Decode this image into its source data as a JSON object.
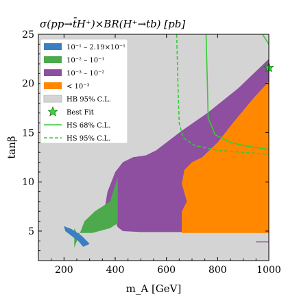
{
  "chart_data": {
    "type": "area",
    "title": "σ(pp→t̄H⁺)×BR(H⁺→tb) [pb]",
    "xlabel": "m_A [GeV]",
    "ylabel": "tanβ",
    "xlim": [
      100,
      1000
    ],
    "ylim": [
      2,
      25
    ],
    "xticks": [
      "200",
      "400",
      "600",
      "800",
      "1000"
    ],
    "xtick_values": [
      200,
      400,
      600,
      800,
      1000
    ],
    "yticks": [
      "5",
      "10",
      "15",
      "20",
      "25"
    ],
    "ytick_values": [
      5,
      10,
      15,
      20,
      25
    ],
    "grid": false,
    "legend_position": "top-left",
    "colors": {
      "background": "#d4d4d4",
      "band1": "#3a7fc1",
      "band2": "#4caa4c",
      "band3": "#8e4fa0",
      "band4": "#ff8800",
      "hb": "#d4d4d4",
      "bestfit": "#33dd33",
      "hs": "#33cc33"
    },
    "legend": [
      {
        "label": "10⁻¹ – 2.19×10⁻¹",
        "color": "#3a7fc1",
        "kind": "patch"
      },
      {
        "label": "10⁻² – 10⁻¹",
        "color": "#4caa4c",
        "kind": "patch"
      },
      {
        "label": "10⁻³ – 10⁻²",
        "color": "#8e4fa0",
        "kind": "patch"
      },
      {
        "label": "< 10⁻³",
        "color": "#ff8800",
        "kind": "patch"
      },
      {
        "label": "HB 95% C.L.",
        "color": "#d4d4d4",
        "kind": "patch"
      },
      {
        "label": "Best Fit",
        "color": "#33dd33",
        "kind": "star"
      },
      {
        "label": "HS 68% C.L.",
        "color": "#33cc33",
        "kind": "solid"
      },
      {
        "label": "HS 95% C.L.",
        "color": "#33cc33",
        "kind": "dashed"
      }
    ],
    "best_fit": {
      "x": 1000,
      "y": 21.6
    },
    "regions": [
      {
        "name": "10⁻³ – 10⁻²",
        "color": "#8e4fa0",
        "points": [
          [
            350,
            6.0
          ],
          [
            370,
            9.0
          ],
          [
            400,
            11.0
          ],
          [
            430,
            12.0
          ],
          [
            470,
            12.5
          ],
          [
            520,
            12.7
          ],
          [
            560,
            13.2
          ],
          [
            600,
            14.0
          ],
          [
            660,
            15.2
          ],
          [
            760,
            17.0
          ],
          [
            880,
            19.5
          ],
          [
            1000,
            22.5
          ],
          [
            1000,
            4.8
          ],
          [
            700,
            4.9
          ],
          [
            500,
            4.9
          ],
          [
            430,
            5.0
          ],
          [
            410,
            5.4
          ],
          [
            400,
            6.0
          ]
        ]
      },
      {
        "name": "10⁻² – 10⁻¹",
        "color": "#4caa4c",
        "points": [
          [
            240,
            3.3
          ],
          [
            280,
            6.0
          ],
          [
            320,
            7.0
          ],
          [
            380,
            8.0
          ],
          [
            410,
            10.5
          ],
          [
            410,
            5.8
          ],
          [
            380,
            5.3
          ],
          [
            310,
            4.8
          ],
          [
            250,
            4.8
          ],
          [
            240,
            5.3
          ]
        ]
      },
      {
        "name": "10⁻¹ – 2.19×10⁻¹",
        "color": "#3a7fc1",
        "points": [
          [
            200,
            5.5
          ],
          [
            230,
            5.2
          ],
          [
            270,
            4.5
          ],
          [
            300,
            3.7
          ],
          [
            275,
            3.4
          ],
          [
            255,
            4.0
          ],
          [
            225,
            4.6
          ],
          [
            205,
            5.0
          ]
        ]
      },
      {
        "name": "< 10⁻³",
        "color": "#ff8800",
        "points": [
          [
            680,
            8.0
          ],
          [
            660,
            9.8
          ],
          [
            670,
            11.2
          ],
          [
            700,
            12.0
          ],
          [
            740,
            12.5
          ],
          [
            800,
            14.0
          ],
          [
            860,
            16.0
          ],
          [
            940,
            18.5
          ],
          [
            1000,
            20.2
          ],
          [
            1000,
            4.8
          ],
          [
            660,
            4.8
          ],
          [
            660,
            7.0
          ]
        ]
      }
    ],
    "hs68": [
      [
        [
          755,
          25.0
        ],
        [
          760,
          20.0
        ],
        [
          763,
          16.5
        ],
        [
          790,
          14.8
        ],
        [
          850,
          14.0
        ],
        [
          920,
          13.6
        ],
        [
          1000,
          13.3
        ]
      ],
      [
        [
          1000,
          24.0
        ],
        [
          975,
          25.0
        ]
      ]
    ],
    "hs95": [
      [
        [
          640,
          25.0
        ],
        [
          645,
          20.0
        ],
        [
          650,
          16.0
        ],
        [
          665,
          14.5
        ],
        [
          710,
          13.7
        ],
        [
          800,
          13.2
        ],
        [
          900,
          13.0
        ],
        [
          1000,
          12.8
        ]
      ]
    ],
    "magenta_segment": [
      [
        950,
        3.9
      ],
      [
        1000,
        3.9
      ]
    ]
  }
}
